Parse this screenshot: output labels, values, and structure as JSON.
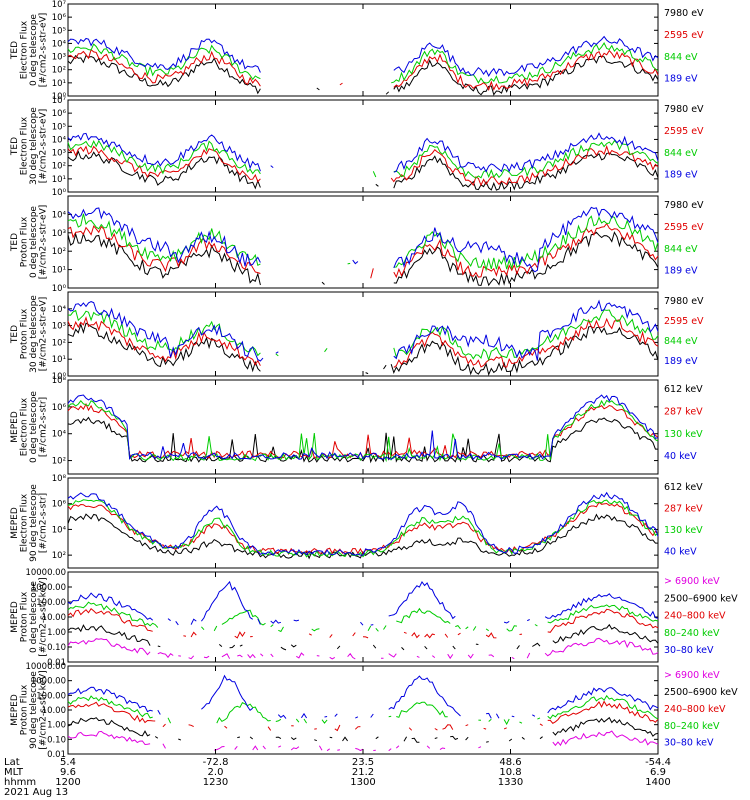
{
  "chart_data": {
    "type": "line",
    "title": "",
    "x_axis": {
      "rows": [
        {
          "label": "Lat",
          "values": [
            "5.4",
            "-72.8",
            "23.5",
            "48.6",
            "-54.4"
          ]
        },
        {
          "label": "MLT",
          "values": [
            "9.6",
            "2.0",
            "21.2",
            "10.8",
            "6.9"
          ]
        },
        {
          "label": "hhmm",
          "values": [
            "1200",
            "1230",
            "1300",
            "1330",
            "1400"
          ]
        }
      ],
      "date": "2021 Aug 13",
      "range": [
        "1200",
        "1400"
      ]
    },
    "panels": [
      {
        "ylabel": [
          "TED",
          "Electron Flux",
          "0 deg telescope",
          "[#/cm2-s-str-eV]"
        ],
        "scale": "log",
        "ylim": [
          1,
          10000000
        ],
        "tick_labels": [
          "10⁰",
          "10¹",
          "10²",
          "10³",
          "10⁴",
          "10⁵",
          "10⁶",
          "10⁷"
        ],
        "legend": [
          {
            "label": "7980 eV",
            "color": "#000000"
          },
          {
            "label": "2595 eV",
            "color": "#e00000"
          },
          {
            "label": "844 eV",
            "color": "#00cc00"
          },
          {
            "label": "189 eV",
            "color": "#0000e0"
          }
        ]
      },
      {
        "ylabel": [
          "TED",
          "Electron Flux",
          "30 deg telescope",
          "[#/cm2-s-str-eV]"
        ],
        "scale": "log",
        "ylim": [
          1,
          10000000
        ],
        "tick_labels": [
          "10⁰",
          "10¹",
          "10²",
          "10³",
          "10⁴",
          "10⁵",
          "10⁶",
          "10⁷"
        ],
        "legend": [
          {
            "label": "7980 eV",
            "color": "#000000"
          },
          {
            "label": "2595 eV",
            "color": "#e00000"
          },
          {
            "label": "844 eV",
            "color": "#00cc00"
          },
          {
            "label": "189 eV",
            "color": "#0000e0"
          }
        ]
      },
      {
        "ylabel": [
          "TED",
          "Proton Flux",
          "0 deg telescope",
          "[#/cm2-s-str-eV]"
        ],
        "scale": "log",
        "ylim": [
          1,
          100000
        ],
        "tick_labels": [
          "10⁰",
          "10¹",
          "10²",
          "10³",
          "10⁴"
        ],
        "legend": [
          {
            "label": "7980 eV",
            "color": "#000000"
          },
          {
            "label": "2595 eV",
            "color": "#e00000"
          },
          {
            "label": "844 eV",
            "color": "#00cc00"
          },
          {
            "label": "189 eV",
            "color": "#0000e0"
          }
        ]
      },
      {
        "ylabel": [
          "TED",
          "Proton Flux",
          "30 deg telescope",
          "[#/cm2-s-str-eV]"
        ],
        "scale": "log",
        "ylim": [
          1,
          100000
        ],
        "tick_labels": [
          "10⁰",
          "10¹",
          "10²",
          "10³",
          "10⁴"
        ],
        "legend": [
          {
            "label": "7980 eV",
            "color": "#000000"
          },
          {
            "label": "2595 eV",
            "color": "#e00000"
          },
          {
            "label": "844 eV",
            "color": "#00cc00"
          },
          {
            "label": "189 eV",
            "color": "#0000e0"
          }
        ]
      },
      {
        "ylabel": [
          "MEPED",
          "Electron Flux",
          "0 deg telescope",
          "[#/cm2-s-str]"
        ],
        "scale": "log",
        "ylim": [
          10,
          100000000
        ],
        "tick_labels": [
          "10²",
          "10⁴",
          "10⁶",
          "10⁸"
        ],
        "tick_exponents": [
          2,
          4,
          6,
          8
        ],
        "legend": [
          {
            "label": "612 keV",
            "color": "#000000"
          },
          {
            "label": "287 keV",
            "color": "#e00000"
          },
          {
            "label": "130 keV",
            "color": "#00cc00"
          },
          {
            "label": "40 keV",
            "color": "#0000e0"
          }
        ]
      },
      {
        "ylabel": [
          "MEPED",
          "Electron Flux",
          "90 deg telescope",
          "[#/cm2-s-str]"
        ],
        "scale": "log",
        "ylim": [
          10,
          100000000
        ],
        "tick_labels": [
          "10²",
          "10⁴",
          "10⁶",
          "10⁸"
        ],
        "tick_exponents": [
          2,
          4,
          6,
          8
        ],
        "legend": [
          {
            "label": "612 keV",
            "color": "#000000"
          },
          {
            "label": "287 keV",
            "color": "#e00000"
          },
          {
            "label": "130 keV",
            "color": "#00cc00"
          },
          {
            "label": "40 keV",
            "color": "#0000e0"
          }
        ]
      },
      {
        "ylabel": [
          "MEPED",
          "Proton Flux",
          "0 deg telescope",
          "[#/cm2-s-str-keV]"
        ],
        "scale": "log",
        "ylim": [
          0.01,
          10000
        ],
        "tick_labels": [
          "0.01",
          "0.10",
          "1.00",
          "10.00",
          "100.00",
          "1000.00",
          "10000.00"
        ],
        "legend": [
          {
            "label": "> 6900 keV",
            "color": "#e000e0"
          },
          {
            "label": "2500–6900 keV",
            "color": "#000000"
          },
          {
            "label": "240–800 keV",
            "color": "#e00000"
          },
          {
            "label": "80–240 keV",
            "color": "#00cc00"
          },
          {
            "label": "30–80 keV",
            "color": "#0000e0"
          }
        ]
      },
      {
        "ylabel": [
          "MEPED",
          "Proton Flux",
          "90 deg telescope",
          "[#/cm2-s-str-keV]"
        ],
        "scale": "log",
        "ylim": [
          0.01,
          10000
        ],
        "tick_labels": [
          "0.01",
          "0.10",
          "1.00",
          "10.00",
          "100.00",
          "1000.00",
          "10000.00"
        ],
        "legend": [
          {
            "label": "> 6900 keV",
            "color": "#e000e0"
          },
          {
            "label": "2500–6900 keV",
            "color": "#000000"
          },
          {
            "label": "240–800 keV",
            "color": "#e00000"
          },
          {
            "label": "80–240 keV",
            "color": "#00cc00"
          },
          {
            "label": "30–80 keV",
            "color": "#0000e0"
          }
        ]
      }
    ]
  }
}
